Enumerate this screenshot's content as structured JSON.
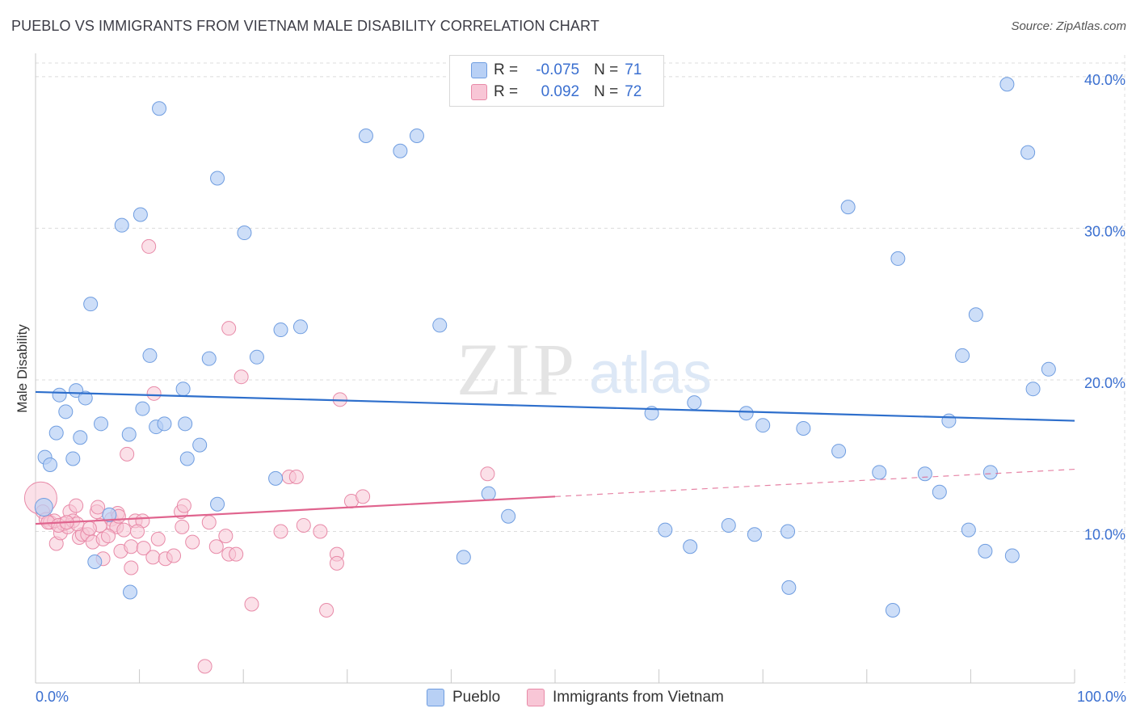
{
  "title": "PUEBLO VS IMMIGRANTS FROM VIETNAM MALE DISABILITY CORRELATION CHART",
  "source": "Source: ZipAtlas.com",
  "watermark": {
    "zip": "ZIP",
    "atlas": "atlas"
  },
  "legend": {
    "r_label": "R =",
    "n_label": "N =",
    "rows": [
      {
        "name": "Pueblo",
        "r": "-0.075",
        "n": "71"
      },
      {
        "name": "Immigrants from Vietnam",
        "r": "0.092",
        "n": "72"
      }
    ]
  },
  "colors": {
    "pueblo_fill": "#b8d0f5",
    "pueblo_stroke": "#6f9de0",
    "pueblo_line": "#2e6fcc",
    "vietnam_fill": "#f8c6d6",
    "vietnam_stroke": "#e88aa8",
    "vietnam_line": "#e0648e",
    "grid": "#dcdcdc",
    "tick_text": "#3a6fd0"
  },
  "chart_data": {
    "type": "scatter",
    "title": "PUEBLO VS IMMIGRANTS FROM VIETNAM MALE DISABILITY CORRELATION CHART",
    "xlabel": "",
    "ylabel": "Male Disability",
    "xlim": [
      0,
      100
    ],
    "ylim": [
      0,
      40.9
    ],
    "x_tick_labels": [
      "0.0%",
      "100.0%"
    ],
    "y_ticks": [
      10,
      20,
      30,
      40
    ],
    "y_tick_labels": [
      "10.0%",
      "20.0%",
      "30.0%",
      "40.0%"
    ],
    "grid": true,
    "legend_position": "top-center",
    "series": [
      {
        "name": "Pueblo",
        "trend": {
          "x": [
            0,
            100
          ],
          "y": [
            19.2,
            17.3
          ]
        },
        "points": [
          {
            "x": 11.9,
            "y": 37.9
          },
          {
            "x": 17.5,
            "y": 33.3
          },
          {
            "x": 10.1,
            "y": 30.9
          },
          {
            "x": 8.3,
            "y": 30.2
          },
          {
            "x": 20.1,
            "y": 29.7
          },
          {
            "x": 5.3,
            "y": 25.0
          },
          {
            "x": 11.0,
            "y": 21.6
          },
          {
            "x": 16.7,
            "y": 21.4
          },
          {
            "x": 21.3,
            "y": 21.5
          },
          {
            "x": 23.6,
            "y": 23.3
          },
          {
            "x": 25.5,
            "y": 23.5
          },
          {
            "x": 3.9,
            "y": 19.3
          },
          {
            "x": 2.3,
            "y": 19.0
          },
          {
            "x": 4.8,
            "y": 18.8
          },
          {
            "x": 2.9,
            "y": 17.9
          },
          {
            "x": 10.3,
            "y": 18.1
          },
          {
            "x": 14.2,
            "y": 19.4
          },
          {
            "x": 6.3,
            "y": 17.1
          },
          {
            "x": 11.6,
            "y": 16.9
          },
          {
            "x": 12.4,
            "y": 17.1
          },
          {
            "x": 14.4,
            "y": 17.1
          },
          {
            "x": 2.0,
            "y": 16.5
          },
          {
            "x": 4.3,
            "y": 16.2
          },
          {
            "x": 9.0,
            "y": 16.4
          },
          {
            "x": 15.8,
            "y": 15.7
          },
          {
            "x": 0.9,
            "y": 14.9
          },
          {
            "x": 1.4,
            "y": 14.4
          },
          {
            "x": 3.6,
            "y": 14.8
          },
          {
            "x": 14.6,
            "y": 14.8
          },
          {
            "x": 23.1,
            "y": 13.5
          },
          {
            "x": 17.5,
            "y": 11.8
          },
          {
            "x": 0.8,
            "y": 11.6
          },
          {
            "x": 7.1,
            "y": 11.1
          },
          {
            "x": 5.7,
            "y": 8.0
          },
          {
            "x": 9.1,
            "y": 6.0
          },
          {
            "x": 31.8,
            "y": 36.1
          },
          {
            "x": 35.1,
            "y": 35.1
          },
          {
            "x": 36.7,
            "y": 36.1
          },
          {
            "x": 38.9,
            "y": 23.6
          },
          {
            "x": 43.6,
            "y": 12.5
          },
          {
            "x": 45.5,
            "y": 11.0
          },
          {
            "x": 41.2,
            "y": 8.3
          },
          {
            "x": 59.3,
            "y": 17.8
          },
          {
            "x": 63.4,
            "y": 18.5
          },
          {
            "x": 68.4,
            "y": 17.8
          },
          {
            "x": 70.0,
            "y": 17.0
          },
          {
            "x": 73.9,
            "y": 16.8
          },
          {
            "x": 77.3,
            "y": 15.3
          },
          {
            "x": 60.6,
            "y": 10.1
          },
          {
            "x": 63.0,
            "y": 9.0
          },
          {
            "x": 66.7,
            "y": 10.4
          },
          {
            "x": 69.2,
            "y": 9.8
          },
          {
            "x": 72.4,
            "y": 10.0
          },
          {
            "x": 72.5,
            "y": 6.3
          },
          {
            "x": 78.2,
            "y": 31.4
          },
          {
            "x": 83.0,
            "y": 28.0
          },
          {
            "x": 81.2,
            "y": 13.9
          },
          {
            "x": 85.6,
            "y": 13.8
          },
          {
            "x": 87.0,
            "y": 12.6
          },
          {
            "x": 87.9,
            "y": 17.3
          },
          {
            "x": 89.2,
            "y": 21.6
          },
          {
            "x": 90.5,
            "y": 24.3
          },
          {
            "x": 89.8,
            "y": 10.1
          },
          {
            "x": 91.4,
            "y": 8.7
          },
          {
            "x": 91.9,
            "y": 13.9
          },
          {
            "x": 93.5,
            "y": 39.5
          },
          {
            "x": 95.5,
            "y": 35.0
          },
          {
            "x": 97.5,
            "y": 20.7
          },
          {
            "x": 96.0,
            "y": 19.4
          },
          {
            "x": 82.5,
            "y": 4.8
          },
          {
            "x": 94.0,
            "y": 8.4
          }
        ]
      },
      {
        "name": "Immigrants from Vietnam",
        "trend": {
          "x": [
            0,
            50
          ],
          "y": [
            10.5,
            12.3
          ]
        },
        "trend_extension": {
          "x": [
            50,
            100
          ],
          "y": [
            12.3,
            14.1
          ]
        },
        "points": [
          {
            "x": 0.5,
            "y": 12.2
          },
          {
            "x": 0.7,
            "y": 11.3
          },
          {
            "x": 1.0,
            "y": 10.8
          },
          {
            "x": 1.4,
            "y": 10.6
          },
          {
            "x": 1.8,
            "y": 10.7
          },
          {
            "x": 2.0,
            "y": 9.2
          },
          {
            "x": 2.4,
            "y": 9.9
          },
          {
            "x": 2.7,
            "y": 10.5
          },
          {
            "x": 3.1,
            "y": 10.3
          },
          {
            "x": 3.3,
            "y": 11.3
          },
          {
            "x": 3.6,
            "y": 10.7
          },
          {
            "x": 3.9,
            "y": 11.7
          },
          {
            "x": 4.2,
            "y": 9.6
          },
          {
            "x": 4.5,
            "y": 9.8
          },
          {
            "x": 5.0,
            "y": 9.8
          },
          {
            "x": 5.5,
            "y": 9.3
          },
          {
            "x": 5.9,
            "y": 11.3
          },
          {
            "x": 6.2,
            "y": 10.4
          },
          {
            "x": 6.5,
            "y": 9.5
          },
          {
            "x": 6.5,
            "y": 8.2
          },
          {
            "x": 7.3,
            "y": 10.8
          },
          {
            "x": 7.5,
            "y": 10.4
          },
          {
            "x": 7.8,
            "y": 10.3
          },
          {
            "x": 7.9,
            "y": 11.2
          },
          {
            "x": 8.2,
            "y": 8.7
          },
          {
            "x": 8.5,
            "y": 10.1
          },
          {
            "x": 8.8,
            "y": 15.1
          },
          {
            "x": 9.2,
            "y": 9.0
          },
          {
            "x": 9.2,
            "y": 7.6
          },
          {
            "x": 9.6,
            "y": 10.7
          },
          {
            "x": 10.3,
            "y": 10.7
          },
          {
            "x": 10.4,
            "y": 8.9
          },
          {
            "x": 10.9,
            "y": 28.8
          },
          {
            "x": 11.3,
            "y": 8.3
          },
          {
            "x": 11.4,
            "y": 19.1
          },
          {
            "x": 11.8,
            "y": 9.5
          },
          {
            "x": 12.5,
            "y": 8.2
          },
          {
            "x": 13.3,
            "y": 8.4
          },
          {
            "x": 14.0,
            "y": 11.3
          },
          {
            "x": 14.1,
            "y": 10.3
          },
          {
            "x": 14.3,
            "y": 11.7
          },
          {
            "x": 15.1,
            "y": 9.3
          },
          {
            "x": 16.3,
            "y": 1.1
          },
          {
            "x": 16.7,
            "y": 10.6
          },
          {
            "x": 17.4,
            "y": 9.0
          },
          {
            "x": 18.3,
            "y": 9.7
          },
          {
            "x": 18.6,
            "y": 8.5
          },
          {
            "x": 19.3,
            "y": 8.5
          },
          {
            "x": 18.6,
            "y": 23.4
          },
          {
            "x": 19.8,
            "y": 20.2
          },
          {
            "x": 20.8,
            "y": 5.2
          },
          {
            "x": 23.6,
            "y": 10.0
          },
          {
            "x": 24.4,
            "y": 13.6
          },
          {
            "x": 25.1,
            "y": 13.6
          },
          {
            "x": 25.8,
            "y": 10.4
          },
          {
            "x": 27.4,
            "y": 10.0
          },
          {
            "x": 28.0,
            "y": 4.8
          },
          {
            "x": 29.0,
            "y": 8.5
          },
          {
            "x": 29.0,
            "y": 7.9
          },
          {
            "x": 29.3,
            "y": 18.7
          },
          {
            "x": 30.4,
            "y": 12.0
          },
          {
            "x": 31.5,
            "y": 12.3
          },
          {
            "x": 43.5,
            "y": 13.8
          },
          {
            "x": 6.0,
            "y": 11.6
          },
          {
            "x": 4.0,
            "y": 10.5
          },
          {
            "x": 1.2,
            "y": 10.6
          },
          {
            "x": 2.2,
            "y": 10.4
          },
          {
            "x": 3.0,
            "y": 10.6
          },
          {
            "x": 5.2,
            "y": 10.2
          },
          {
            "x": 8.0,
            "y": 11.0
          },
          {
            "x": 9.8,
            "y": 10.0
          },
          {
            "x": 7.0,
            "y": 9.7
          }
        ]
      }
    ]
  }
}
